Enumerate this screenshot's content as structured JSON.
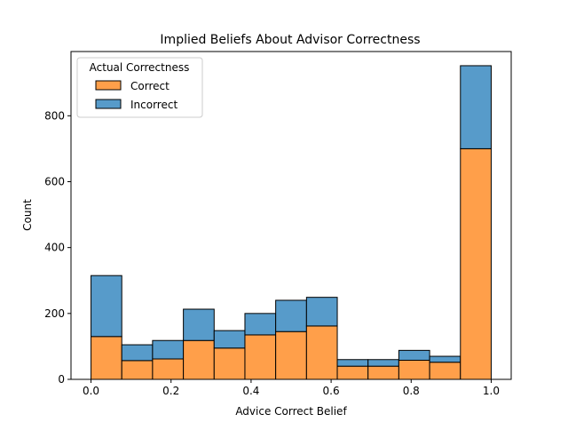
{
  "chart_data": {
    "type": "bar",
    "stacked": true,
    "title": "Implied Beliefs About Advisor Correctness",
    "xlabel": "Advice Correct Belief",
    "ylabel": "Count",
    "xlim": [
      -0.05,
      1.05
    ],
    "ylim": [
      0,
      995
    ],
    "bin_edges": [
      0.0,
      0.0769,
      0.1538,
      0.2308,
      0.3077,
      0.3846,
      0.4615,
      0.5385,
      0.6154,
      0.6923,
      0.7692,
      0.8462,
      0.9231,
      1.0
    ],
    "x_ticks": [
      0.0,
      0.2,
      0.4,
      0.6,
      0.8,
      1.0
    ],
    "x_tick_labels": [
      "0.0",
      "0.2",
      "0.4",
      "0.6",
      "0.8",
      "1.0"
    ],
    "y_ticks": [
      0,
      200,
      400,
      600,
      800
    ],
    "y_tick_labels": [
      "0",
      "200",
      "400",
      "600",
      "800"
    ],
    "grid": false,
    "legend": {
      "title": "Actual Correctness",
      "placement": "top-left"
    },
    "series": [
      {
        "name": "Correct",
        "color": "#ff9f4a",
        "values": [
          130,
          57,
          62,
          118,
          95,
          135,
          145,
          162,
          40,
          40,
          58,
          52,
          700
        ]
      },
      {
        "name": "Incorrect",
        "color": "#579bca",
        "values": [
          185,
          48,
          56,
          95,
          53,
          65,
          95,
          87,
          20,
          20,
          30,
          18,
          252
        ]
      }
    ]
  }
}
